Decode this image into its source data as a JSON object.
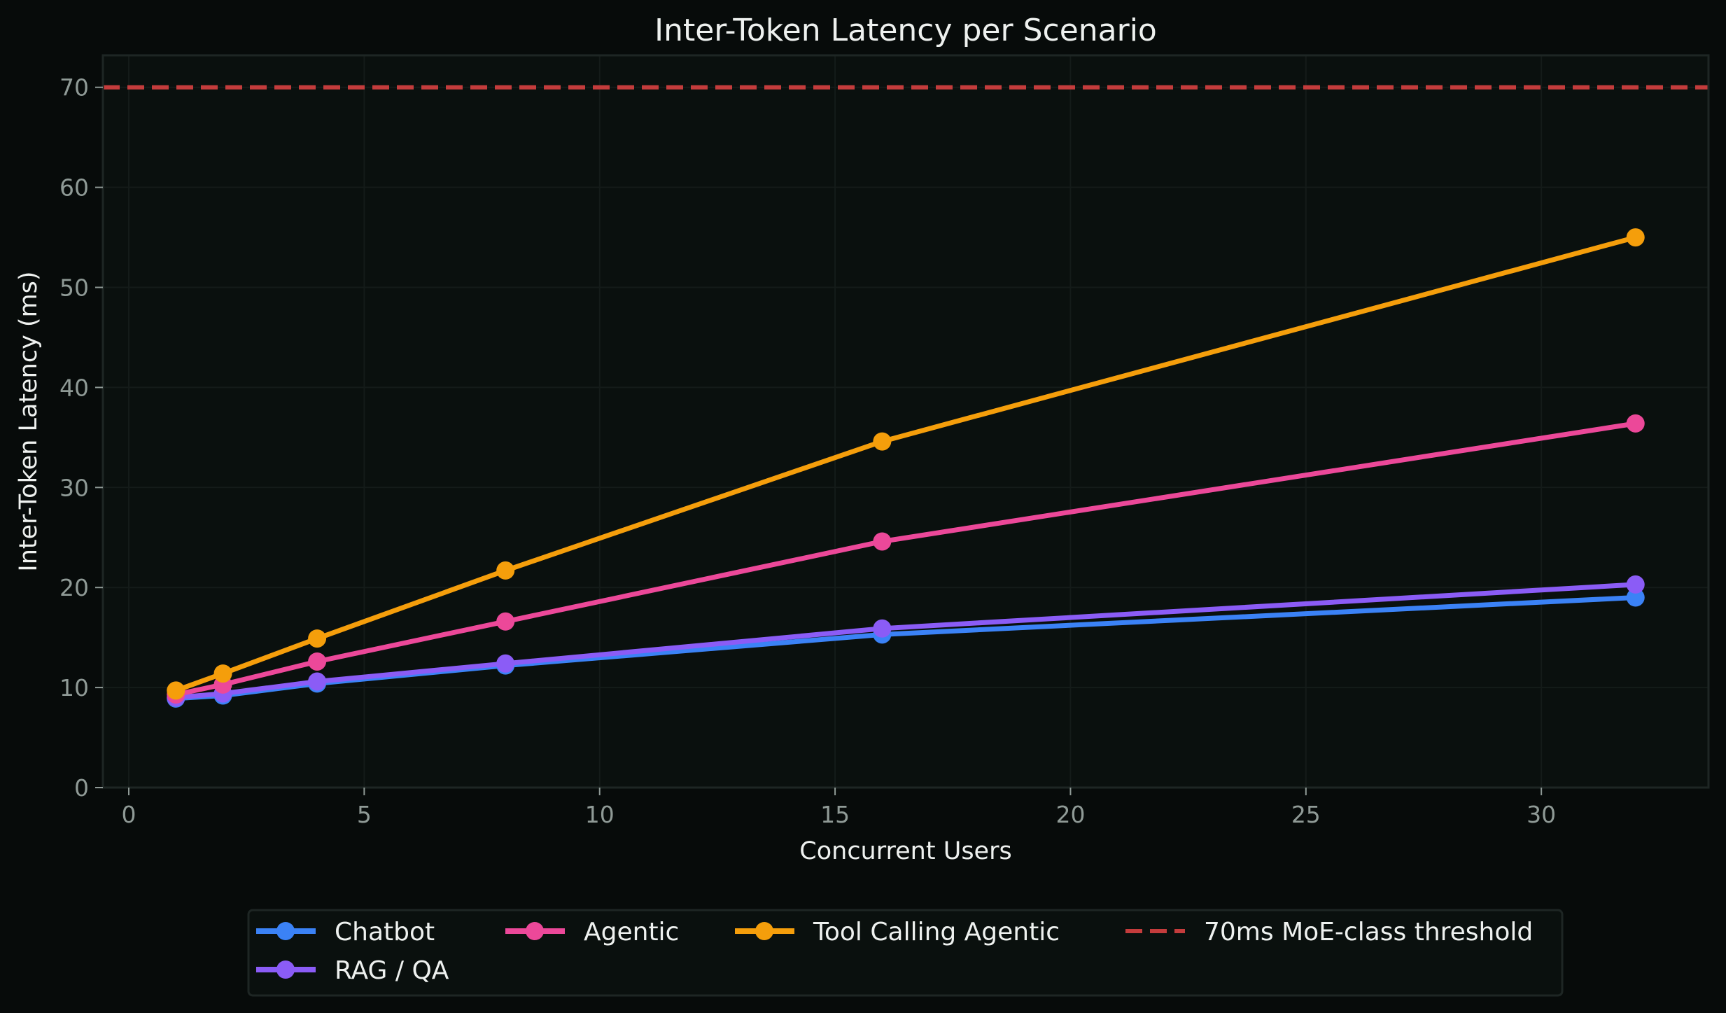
{
  "chart_data": {
    "type": "line",
    "title": "Inter-Token Latency per Scenario",
    "xlabel": "Concurrent Users",
    "ylabel": "Inter-Token Latency (ms)",
    "x": [
      1,
      2,
      4,
      8,
      16,
      32
    ],
    "xlim": [
      -0.55,
      33.55
    ],
    "ylim": [
      0,
      73.2
    ],
    "xticks": [
      0,
      5,
      10,
      15,
      20,
      25,
      30
    ],
    "yticks": [
      0,
      10,
      20,
      30,
      40,
      50,
      60,
      70
    ],
    "grid": true,
    "legend_position": "below, outside",
    "series": [
      {
        "name": "Chatbot",
        "color": "#3b82f6",
        "marker": "circle",
        "values": [
          8.9,
          9.2,
          10.4,
          12.2,
          15.3,
          19.0
        ]
      },
      {
        "name": "RAG / QA",
        "color": "#8b5cf6",
        "marker": "circle",
        "values": [
          9.0,
          9.4,
          10.6,
          12.4,
          15.9,
          20.3
        ]
      },
      {
        "name": "Agentic",
        "color": "#ec4899",
        "marker": "circle",
        "values": [
          9.3,
          10.3,
          12.6,
          16.6,
          24.6,
          36.4
        ]
      },
      {
        "name": "Tool Calling Agentic",
        "color": "#f59e0b",
        "marker": "circle",
        "values": [
          9.7,
          11.4,
          14.9,
          21.7,
          34.6,
          55.0
        ]
      }
    ],
    "reference_lines": [
      {
        "name": "70ms MoE-class threshold",
        "y": 70,
        "color": "#c43c3c",
        "style": "dashed"
      }
    ]
  },
  "colors": {
    "background": "#070b0a",
    "plot_background": "#0a100e",
    "grid": "#141b19",
    "spine": "#1e2624",
    "tick_label": "#8f9a96",
    "text": "#eef1ef"
  }
}
